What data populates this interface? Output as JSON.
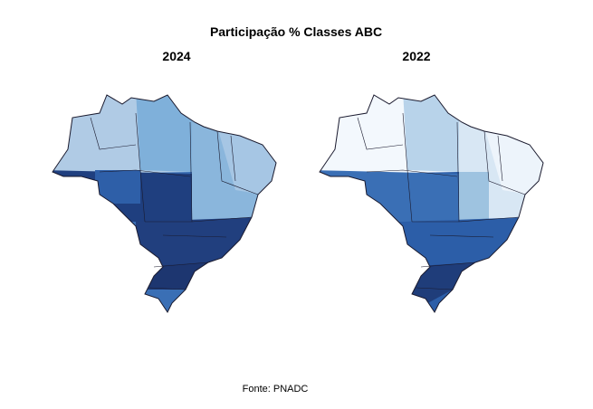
{
  "title": "Participação % Classes ABC",
  "panels": [
    {
      "title": "2024"
    },
    {
      "title": "2022"
    }
  ],
  "source": "Fonte: PNADC"
}
